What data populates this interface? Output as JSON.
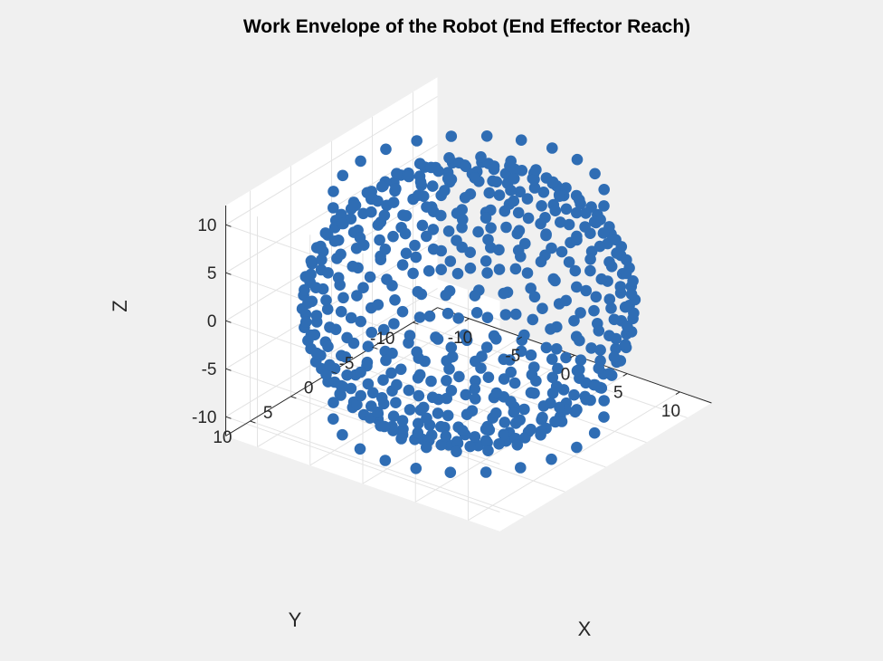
{
  "chart_data": {
    "type": "scatter",
    "title": "Work Envelope of the Robot (End Effector Reach)",
    "xlabel": "X",
    "ylabel": "Y",
    "zlabel": "Z",
    "xlim": [
      -13,
      13
    ],
    "ylim": [
      -13,
      13
    ],
    "zlim": [
      -12,
      12
    ],
    "x_ticks": [
      "-10",
      "-5",
      "0",
      "5",
      "10"
    ],
    "y_ticks": [
      "-10",
      "-5",
      "0",
      "5",
      "10"
    ],
    "z_ticks": [
      "-10",
      "-5",
      "0",
      "5",
      "10"
    ],
    "grid": true,
    "marker_color": "#2f6db4",
    "series": [
      {
        "shape": "sphere-shell",
        "radius": 12.5,
        "polar_caps_open_from_abs_z": 11.0
      }
    ]
  }
}
